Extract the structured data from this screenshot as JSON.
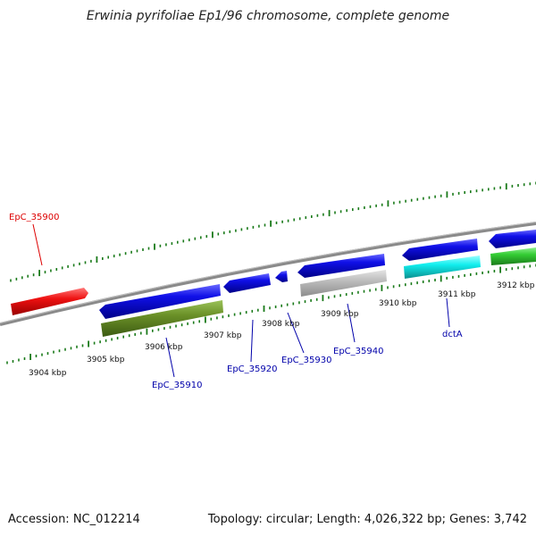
{
  "title": "Erwinia pyrifoliae Ep1/96 chromosome, complete genome",
  "footer": {
    "accession": "Accession: NC_012214",
    "summary": "Topology: circular; Length: 4,026,322 bp; Genes: 3,742"
  },
  "colors": {
    "backbone": "#888888",
    "tick": "#1a7a1a",
    "gene_blue": "#0a0adc",
    "gene_red": "#ee1111",
    "gene_green_dark": "#5f8a22",
    "gene_gray": "#bbbbbb",
    "gene_cyan": "#11eeee",
    "gene_green": "#33cc33",
    "label_blue": "#0000aa",
    "label_red": "#dd0000"
  },
  "kbp_labels": [
    "3904 kbp",
    "3905 kbp",
    "3906 kbp",
    "3907 kbp",
    "3908 kbp",
    "3909 kbp",
    "3910 kbp",
    "3911 kbp",
    "3912 kbp"
  ],
  "gene_labels": {
    "EpC_35900": "EpC_35900",
    "EpC_35910": "EpC_35910",
    "EpC_35920": "EpC_35920",
    "EpC_35930": "EpC_35930",
    "EpC_35940": "EpC_35940",
    "dctA": "dctA"
  }
}
